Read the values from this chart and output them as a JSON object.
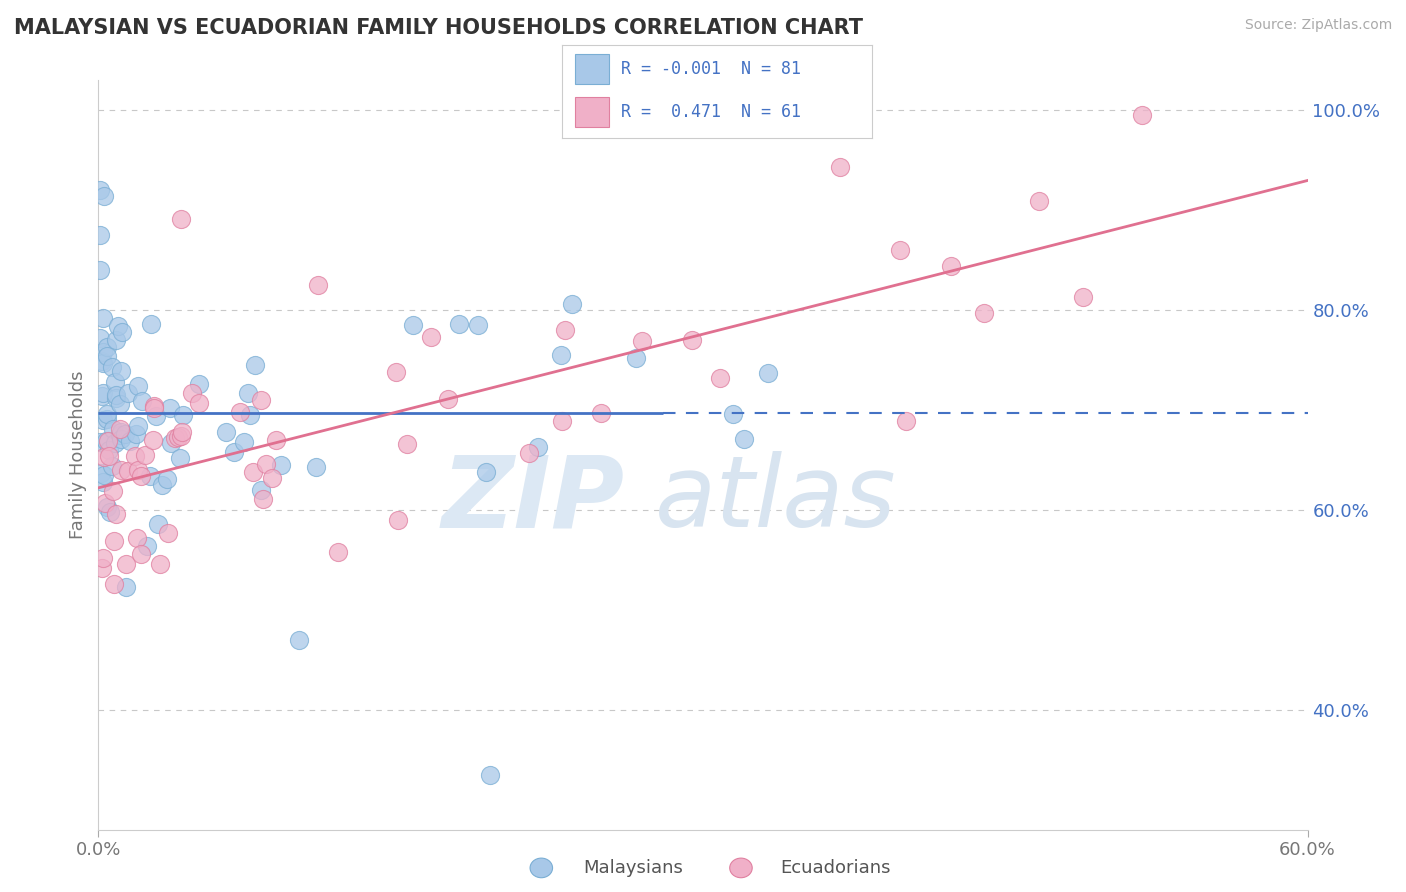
{
  "title": "MALAYSIAN VS ECUADORIAN FAMILY HOUSEHOLDS CORRELATION CHART",
  "source": "Source: ZipAtlas.com",
  "ylabel": "Family Households",
  "xlim": [
    0.0,
    0.6
  ],
  "ylim": [
    0.28,
    1.03
  ],
  "yticks": [
    0.4,
    0.6,
    0.8,
    1.0
  ],
  "ytick_labels": [
    "40.0%",
    "60.0%",
    "80.0%",
    "100.0%"
  ],
  "blue_color": "#a8c8e8",
  "blue_edge": "#7aaed4",
  "pink_color": "#f0b0c8",
  "pink_edge": "#e080a0",
  "blue_line_color": "#4472c4",
  "pink_line_color": "#e07090",
  "blue_label": "Malaysians",
  "pink_label": "Ecuadorians",
  "blue_R": -0.001,
  "blue_N": 81,
  "pink_R": 0.471,
  "pink_N": 61,
  "legend_text_color": "#4472c4",
  "grid_color": "#c8c8c8",
  "background_color": "#ffffff",
  "watermark_zip_color": "#dce8f4",
  "watermark_atlas_color": "#d8e4f0"
}
